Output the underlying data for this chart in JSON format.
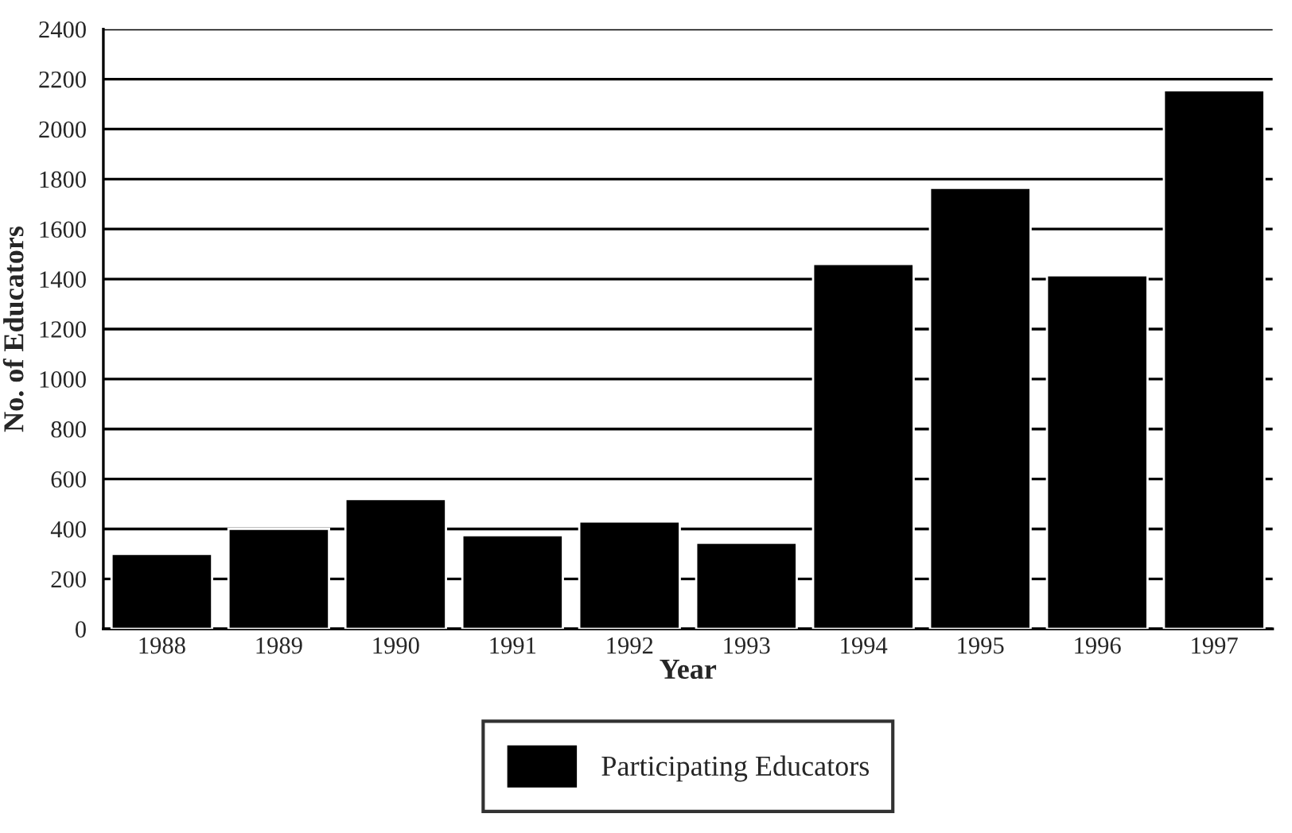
{
  "chart_data": {
    "type": "bar",
    "xlabel": "Year",
    "ylabel": "No. of Educators",
    "categories": [
      "1988",
      "1989",
      "1990",
      "1991",
      "1992",
      "1993",
      "1994",
      "1995",
      "1996",
      "1997"
    ],
    "series": [
      {
        "name": "Participating Educators",
        "color": "#000000",
        "values": [
          300,
          400,
          520,
          375,
          430,
          345,
          1460,
          1765,
          1415,
          2155
        ]
      }
    ],
    "ylim": [
      0,
      2400
    ],
    "yticks": [
      0,
      200,
      400,
      600,
      800,
      1000,
      1200,
      1400,
      1600,
      1800,
      2000,
      2200,
      2400
    ],
    "grid": "y",
    "legend": "bottom"
  }
}
